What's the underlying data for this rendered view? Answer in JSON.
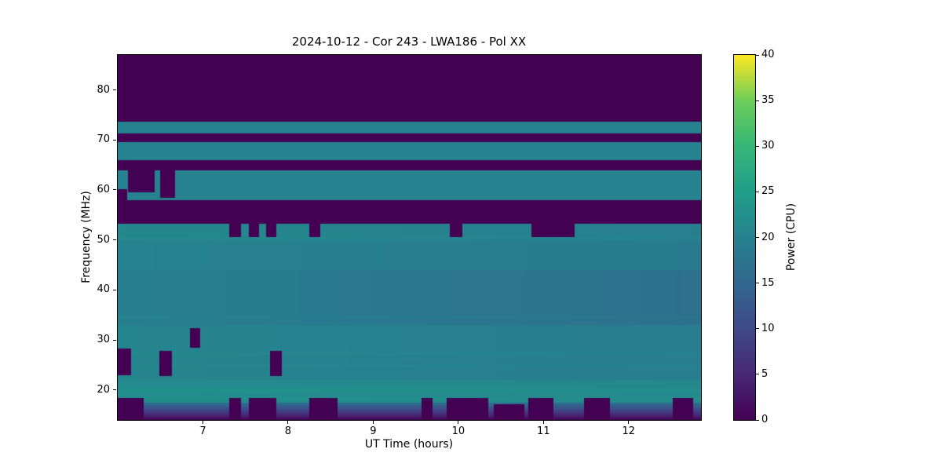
{
  "colors": {
    "figure_background": "#ffffff",
    "text": "#000000",
    "colormap_low": "#440154",
    "colormap_mid": "#26828e",
    "colormap_high": "#fde725"
  },
  "chart_data": {
    "type": "heatmap",
    "title": "2024-10-12 - Cor 243 - LWA186 - Pol XX",
    "xlabel": "UT Time (hours)",
    "ylabel": "Frequency (MHz)",
    "colorbar_label": "Power (CPU)",
    "colormap": "viridis",
    "legend_position": "right-colorbar",
    "grid": false,
    "x_range": [
      6.0,
      12.85
    ],
    "y_range": [
      14,
      87
    ],
    "value_range": [
      0,
      40
    ],
    "x_ticks": [
      7,
      8,
      9,
      10,
      11,
      12
    ],
    "y_ticks": [
      20,
      30,
      40,
      50,
      60,
      70,
      80
    ],
    "colorbar_ticks": [
      0,
      5,
      10,
      15,
      20,
      25,
      30,
      35,
      40
    ],
    "bands": [
      {
        "f": [
          73.6,
          87.0
        ],
        "v": 0
      },
      {
        "f": [
          71.3,
          73.6
        ],
        "v": 20
      },
      {
        "f": [
          69.6,
          71.3
        ],
        "v": 0
      },
      {
        "f": [
          65.9,
          69.6
        ],
        "v": 20
      },
      {
        "f": [
          63.9,
          65.9
        ],
        "v": 0
      },
      {
        "f": [
          57.9,
          63.9
        ],
        "v": 20
      },
      {
        "f": [
          53.2,
          57.9
        ],
        "v": 0
      },
      {
        "f": [
          50.3,
          53.2
        ],
        "v": 21,
        "v_end": 19.5
      },
      {
        "f": [
          44.0,
          50.3
        ],
        "v": 20,
        "v_end": 18.5
      },
      {
        "f": [
          33.0,
          44.0
        ],
        "v": 19.5,
        "v_end": 16.5
      },
      {
        "f": [
          22.0,
          33.0
        ],
        "v": 20.5,
        "v_end": 19.0
      },
      {
        "f": [
          17.5,
          22.0
        ],
        "v": 21.5,
        "v_end": 21.0
      },
      {
        "f": [
          14.0,
          17.5
        ],
        "v_top": 17,
        "v_bottom": 0
      }
    ],
    "stripes": [
      {
        "f": 50.1,
        "delta": 1.2,
        "width": 0.7
      },
      {
        "f": 34.5,
        "delta": 0.9,
        "width": 0.6
      },
      {
        "f": 27.3,
        "delta": 0.8,
        "width": 0.6
      },
      {
        "f": 24.8,
        "delta": 0.7,
        "width": 0.5
      },
      {
        "f": 19.8,
        "delta": 1.2,
        "width": 0.9
      },
      {
        "f": 18.3,
        "delta": 1.5,
        "width": 0.7
      }
    ],
    "dark_blocks": [
      {
        "t": [
          6.0,
          6.11
        ],
        "f": [
          57.9,
          60.2
        ],
        "v": 0
      },
      {
        "t": [
          6.12,
          6.43
        ],
        "f": [
          59.6,
          63.9
        ],
        "v": 0
      },
      {
        "t": [
          6.5,
          6.67
        ],
        "f": [
          58.4,
          63.9
        ],
        "v": 0
      },
      {
        "t": [
          7.31,
          7.45
        ],
        "f": [
          50.6,
          53.2
        ],
        "v": 0
      },
      {
        "t": [
          7.54,
          7.66
        ],
        "f": [
          50.6,
          53.2
        ],
        "v": 0
      },
      {
        "t": [
          7.74,
          7.86
        ],
        "f": [
          50.6,
          53.2
        ],
        "v": 0
      },
      {
        "t": [
          8.25,
          8.38
        ],
        "f": [
          50.6,
          53.2
        ],
        "v": 0
      },
      {
        "t": [
          9.9,
          10.05
        ],
        "f": [
          50.6,
          53.2
        ],
        "v": 0
      },
      {
        "t": [
          10.86,
          11.37
        ],
        "f": [
          50.6,
          53.2
        ],
        "v": 0
      },
      {
        "t": [
          6.85,
          6.97
        ],
        "f": [
          28.5,
          32.3
        ],
        "v": 0
      },
      {
        "t": [
          6.0,
          6.16
        ],
        "f": [
          23.0,
          28.3
        ],
        "v": 0
      },
      {
        "t": [
          6.49,
          6.64
        ],
        "f": [
          22.8,
          27.8
        ],
        "v": 0
      },
      {
        "t": [
          7.79,
          7.93
        ],
        "f": [
          22.8,
          27.8
        ],
        "v": 0
      },
      {
        "t": [
          6.0,
          6.3
        ],
        "f": [
          14.0,
          18.4
        ],
        "v": 0
      },
      {
        "t": [
          7.31,
          7.45
        ],
        "f": [
          14.0,
          18.4
        ],
        "v": 0
      },
      {
        "t": [
          7.54,
          7.86
        ],
        "f": [
          14.0,
          18.4
        ],
        "v": 0
      },
      {
        "t": [
          8.25,
          8.58
        ],
        "f": [
          14.0,
          18.4
        ],
        "v": 0
      },
      {
        "t": [
          9.57,
          9.7
        ],
        "f": [
          14.0,
          18.4
        ],
        "v": 0
      },
      {
        "t": [
          9.86,
          10.35
        ],
        "f": [
          14.0,
          18.4
        ],
        "v": 0
      },
      {
        "t": [
          10.42,
          10.78
        ],
        "f": [
          14.0,
          17.2
        ],
        "v": 0
      },
      {
        "t": [
          10.82,
          11.12
        ],
        "f": [
          14.0,
          18.4
        ],
        "v": 0
      },
      {
        "t": [
          11.48,
          11.78
        ],
        "f": [
          14.0,
          18.4
        ],
        "v": 0
      },
      {
        "t": [
          12.52,
          12.76
        ],
        "f": [
          14.0,
          18.4
        ],
        "v": 0
      }
    ]
  }
}
